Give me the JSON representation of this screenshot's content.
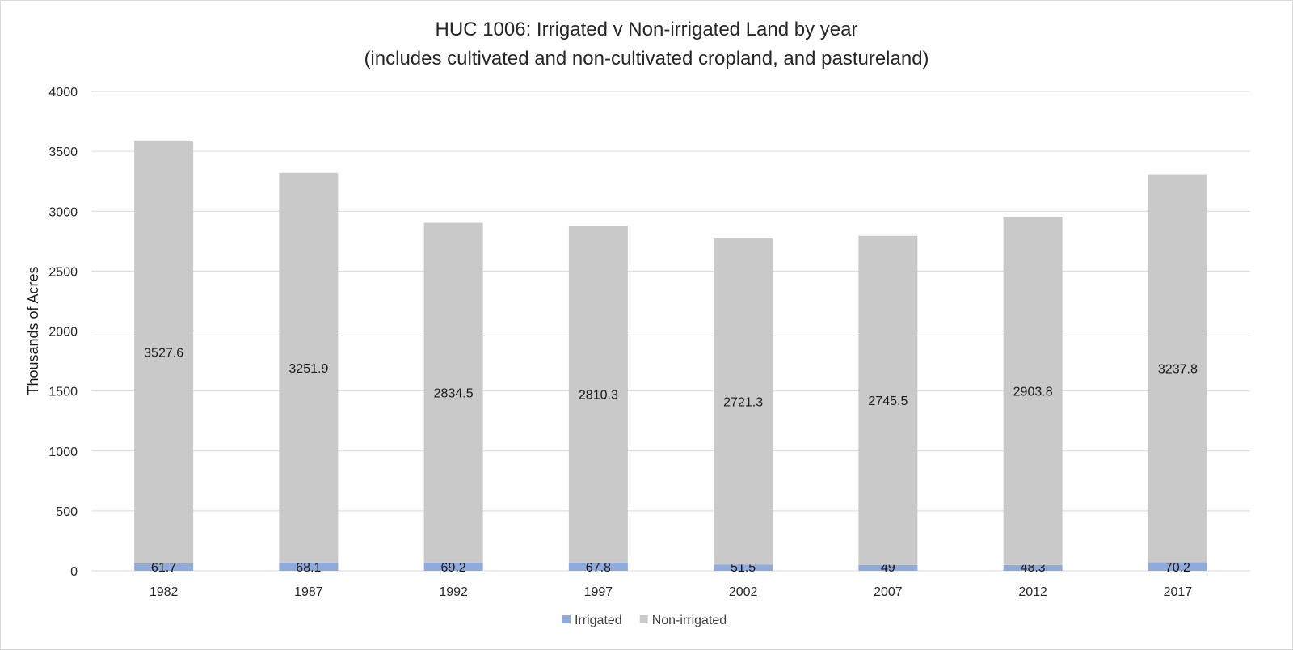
{
  "chart_data": {
    "type": "bar",
    "stacked": true,
    "title": "HUC 1006: Irrigated v Non-irrigated Land by year",
    "subtitle": "(includes cultivated and non-cultivated cropland, and pastureland)",
    "xlabel": "",
    "ylabel": "Thousands of Acres",
    "ylim": [
      0,
      4000
    ],
    "yticks": [
      "0",
      "500",
      "1000",
      "1500",
      "2000",
      "2500",
      "3000",
      "3500",
      "4000"
    ],
    "categories": [
      "1982",
      "1987",
      "1992",
      "1997",
      "2002",
      "2007",
      "2012",
      "2017"
    ],
    "series": [
      {
        "name": "Irrigated",
        "color": "#8faadc",
        "values": [
          61.7,
          68.1,
          69.2,
          67.8,
          51.5,
          49,
          48.3,
          70.2
        ]
      },
      {
        "name": "Non-irrigated",
        "color": "#c9c9c9",
        "values": [
          3527.6,
          3251.9,
          2834.5,
          2810.3,
          2721.3,
          2745.5,
          2903.8,
          3237.8
        ]
      }
    ],
    "data_labels": true,
    "grid": true,
    "legend": "bottom"
  }
}
